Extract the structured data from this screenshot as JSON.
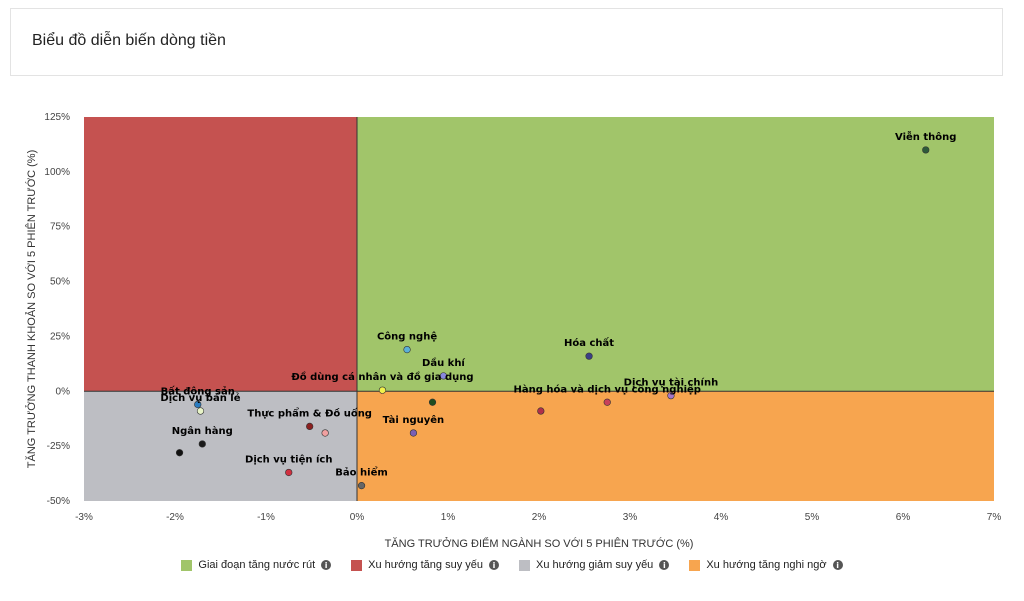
{
  "header": {
    "title": "Biểu đồ diễn biến dòng tiền"
  },
  "chart_data": {
    "type": "scatter",
    "title": "Biểu đồ diễn biến dòng tiền",
    "xlabel": "TĂNG TRƯỞNG ĐIỂM NGÀNH SO VỚI 5 PHIÊN TRƯỚC (%)",
    "ylabel": "TĂNG TRƯỞNG THANH KHOẢN SO VỚI 5 PHIÊN TRƯỚC (%)",
    "xlim": [
      -3,
      7
    ],
    "ylim": [
      -50,
      125
    ],
    "x_ticks": [
      -3,
      -2,
      -1,
      0,
      1,
      2,
      3,
      4,
      5,
      6,
      7
    ],
    "x_tick_labels": [
      "-3%",
      "-2%",
      "-1%",
      "0%",
      "1%",
      "2%",
      "3%",
      "4%",
      "5%",
      "6%",
      "7%"
    ],
    "y_ticks": [
      -50,
      -25,
      0,
      25,
      50,
      75,
      100,
      125
    ],
    "y_tick_labels": [
      "-50%",
      "-25%",
      "0%",
      "25%",
      "50%",
      "75%",
      "100%",
      "125%"
    ],
    "quadrants": [
      {
        "name": "Giai đoạn tăng nước rút",
        "region": "top-right",
        "color": "#a1c56a"
      },
      {
        "name": "Xu hướng tăng suy yếu",
        "region": "top-left",
        "color": "#c55250"
      },
      {
        "name": "Xu hướng giảm suy yếu",
        "region": "bottom-left",
        "color": "#bdbec3"
      },
      {
        "name": "Xu hướng tăng nghi ngờ",
        "region": "bottom-right",
        "color": "#f7a54f"
      }
    ],
    "legend_position": "bottom",
    "points": [
      {
        "x": 6.25,
        "y": 110,
        "label": "Viễn thông",
        "color": "#2e5a3a"
      },
      {
        "x": 2.55,
        "y": 16,
        "label": "Hóa chất",
        "color": "#3b3f86"
      },
      {
        "x": 0.55,
        "y": 19,
        "label": "Công nghệ",
        "color": "#5ab0d8"
      },
      {
        "x": 0.95,
        "y": 7,
        "label": "Dầu khí",
        "color": "#8888dd"
      },
      {
        "x": 3.45,
        "y": -2,
        "label": "Dịch vụ tài chính",
        "color": "#a576c9"
      },
      {
        "x": 0.28,
        "y": 0.5,
        "label": "Đồ dùng cá nhân và đồ gia dụng",
        "color": "#f2f24b"
      },
      {
        "x": 2.75,
        "y": -5,
        "label": "Hàng hóa và dịch vụ công nghiệp",
        "color": "#c8405a"
      },
      {
        "x": 0.83,
        "y": -5,
        "label": "",
        "color": "#1f4d1f"
      },
      {
        "x": 2.02,
        "y": -9,
        "label": "",
        "color": "#b02f4a"
      },
      {
        "x": 0.62,
        "y": -19,
        "label": "Tài nguyên",
        "color": "#7a5fb5"
      },
      {
        "x": 0.05,
        "y": -43,
        "label": "Bảo hiểm",
        "color": "#666666"
      },
      {
        "x": -1.75,
        "y": -6,
        "label": "Bất động sản",
        "color": "#2b7cc0"
      },
      {
        "x": -1.72,
        "y": -9,
        "label": "Dịch vụ bán lẻ",
        "color": "#e8f4c8"
      },
      {
        "x": -0.52,
        "y": -16,
        "label": "Thực phẩm & Đồ uống",
        "color": "#8b2020"
      },
      {
        "x": -0.35,
        "y": -19,
        "label": "",
        "color": "#f0a0a0"
      },
      {
        "x": -1.7,
        "y": -24,
        "label": "Ngân hàng",
        "color": "#1a1a1a"
      },
      {
        "x": -1.95,
        "y": -28,
        "label": "",
        "color": "#111111"
      },
      {
        "x": -0.75,
        "y": -37,
        "label": "Dịch vụ tiện ích",
        "color": "#d03040"
      }
    ]
  },
  "legend": [
    {
      "label": "Giai đoạn tăng nước rút",
      "color": "#a1c56a",
      "icon": "info-icon"
    },
    {
      "label": "Xu hướng tăng suy yếu",
      "color": "#c55250",
      "icon": "info-icon"
    },
    {
      "label": "Xu hướng giảm suy yếu",
      "color": "#bdbec3",
      "icon": "info-icon"
    },
    {
      "label": "Xu hướng tăng nghi ngờ",
      "color": "#f7a54f",
      "icon": "info-icon"
    }
  ]
}
